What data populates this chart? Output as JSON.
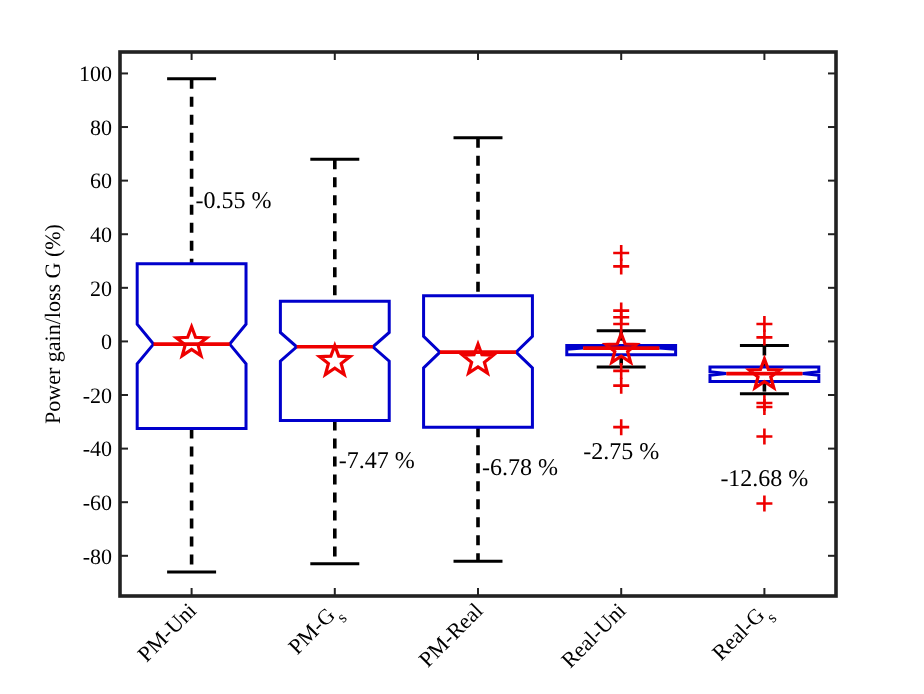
{
  "chart_data": {
    "type": "box",
    "ylabel": "Power gain/loss G (%)",
    "categories": [
      "PM-Uni",
      "PM-G$_{s}$",
      "PM-Real",
      "Real-Uni",
      "Real-G$_{s}$"
    ],
    "boxes": [
      {
        "low": -86,
        "q1": -32.5,
        "median": -1,
        "q3": 29,
        "high": 98
      },
      {
        "low": -83,
        "q1": -29.5,
        "median": -2,
        "q3": 15,
        "high": 68
      },
      {
        "low": -82,
        "q1": -32,
        "median": -4,
        "q3": 17,
        "high": 76
      },
      {
        "low": -9.5,
        "q1": -5,
        "median": -2.5,
        "q3": -1.5,
        "high": 4,
        "outliers": [
          33,
          28,
          11.5,
          9,
          6.5,
          -11,
          -16.5,
          -32
        ]
      },
      {
        "low": -19.5,
        "q1": -15,
        "median": -12,
        "q3": -9.5,
        "high": -1.5,
        "outliers": [
          6.5,
          1.5,
          -23,
          -24.5,
          -35.5,
          -60.5
        ]
      }
    ],
    "color": "#0000cc",
    "series": [
      {
        "type": "scatter",
        "x": [
          "PM-Uni",
          "PM-G$_{s}$",
          "PM-Real",
          "Real-Uni",
          "Real-G$_{s}$"
        ],
        "values": [
          -0.5,
          -7.5,
          -7,
          -3,
          -12.5
        ],
        "color": "#ee0000",
        "marker": "star"
      }
    ],
    "annotations": [
      "-0.55 %",
      "-7.47 %",
      "-6.78 %",
      "-2.75 %",
      "-12.68 %"
    ],
    "ylim": [
      -95,
      108
    ],
    "yticks": [
      -80,
      -60,
      -40,
      -20,
      0,
      20,
      40,
      60,
      80,
      100
    ],
    "grid": false,
    "line_style": "dashed"
  }
}
